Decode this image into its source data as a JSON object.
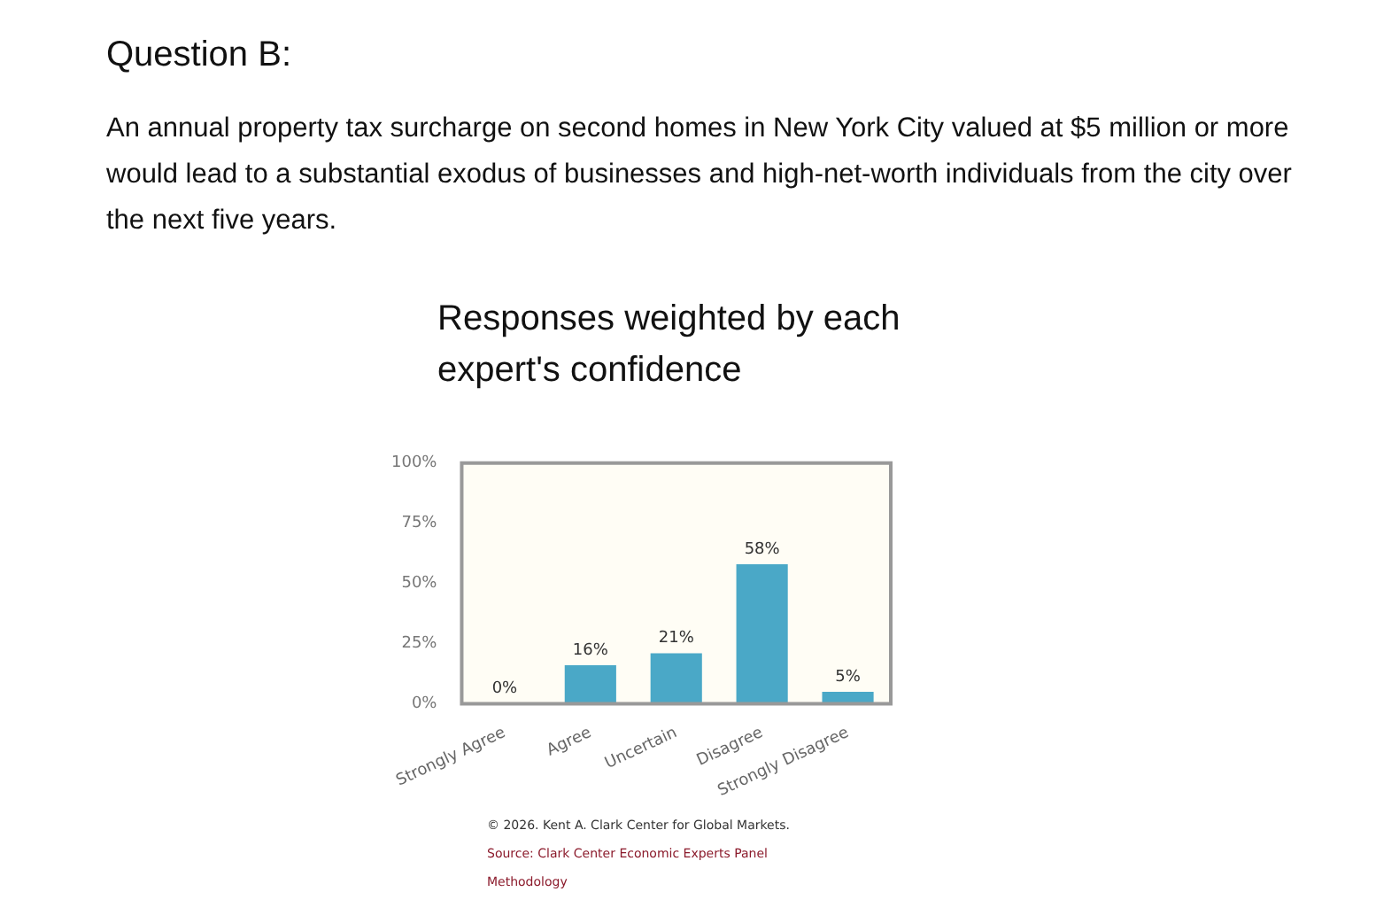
{
  "chart_data": {
    "type": "bar",
    "title": "Responses weighted by each expert's confidence",
    "categories": [
      "Strongly Agree",
      "Agree",
      "Uncertain",
      "Disagree",
      "Strongly Disagree"
    ],
    "values": [
      0,
      16,
      21,
      58,
      5
    ],
    "value_labels": [
      "0%",
      "16%",
      "21%",
      "58%",
      "5%"
    ],
    "color": "#4aa8c7",
    "ylim": [
      0,
      100
    ],
    "yticks": [
      {
        "value": 0,
        "label": "0%"
      },
      {
        "value": 25,
        "label": "25%"
      },
      {
        "value": 50,
        "label": "50%"
      },
      {
        "value": 75,
        "label": "75%"
      },
      {
        "value": 100,
        "label": "100%"
      }
    ],
    "annotations": [
      "Question B:",
      "An annual property tax surcharge on second homes in New York City valued at $5 million or more would lead to a substantial exodus of businesses and high-net-worth individuals from the city over the next five years.",
      "© 2026. Kent A. Clark Center for Global Markets.",
      "Source: Clark Center Economic Experts Panel",
      "Methodology"
    ]
  }
}
